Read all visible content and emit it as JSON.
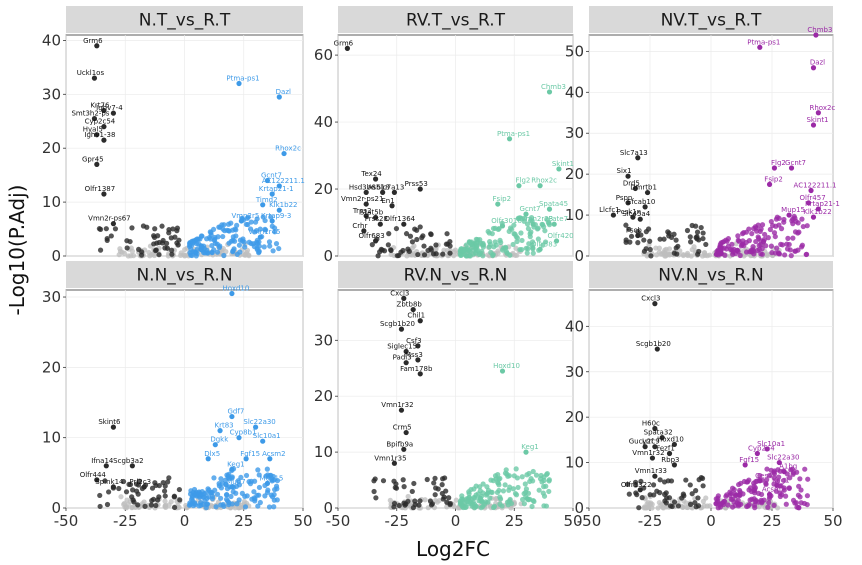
{
  "xlabel": "Log2FC",
  "ylabel": "-Log10(P.Adj)",
  "colors": {
    "down": "#2b2b2b",
    "ns": "#bdbdbd",
    "up_T": "#3d9ae8",
    "up_RV": "#6cc9a6",
    "up_NV": "#9b2aa6",
    "up_N": "#3d9ae8"
  },
  "chart_data": [
    {
      "type": "scatter",
      "title": "N.T_vs_R.T",
      "xlim": [
        -50,
        50
      ],
      "ylim": [
        0,
        41
      ],
      "xticks": [
        -50,
        -25,
        0,
        25,
        50
      ],
      "yticks": [
        0,
        10,
        20,
        30,
        40
      ],
      "up_color_key": "up_T",
      "labeled_down": [
        {
          "label": "Grm6",
          "x": -37,
          "y": 39
        },
        {
          "label": "Uckl1os",
          "x": -38,
          "y": 33
        },
        {
          "label": "Krt76",
          "x": -34,
          "y": 27
        },
        {
          "label": "Ighv7-4",
          "x": -30,
          "y": 26.5
        },
        {
          "label": "Smt3h2-ps",
          "x": -38,
          "y": 25.5
        },
        {
          "label": "Cyp2c54",
          "x": -34,
          "y": 24
        },
        {
          "label": "Hyal5",
          "x": -37,
          "y": 22.5
        },
        {
          "label": "Ighv1-38",
          "x": -34,
          "y": 21.5
        },
        {
          "label": "Gpr45",
          "x": -37,
          "y": 17
        },
        {
          "label": "Olfr1387",
          "x": -34,
          "y": 11.5
        },
        {
          "label": "Vmn2r-ps67",
          "x": -30,
          "y": 6
        }
      ],
      "labeled_up": [
        {
          "label": "Ptma-ps1",
          "x": 23,
          "y": 32
        },
        {
          "label": "Dazl",
          "x": 40,
          "y": 29.5
        },
        {
          "label": "Rhox2c",
          "x": 42,
          "y": 19
        },
        {
          "label": "Gcnt7",
          "x": 35,
          "y": 14
        },
        {
          "label": "AC122211.1",
          "x": 40,
          "y": 13
        },
        {
          "label": "Krtap21-1",
          "x": 37,
          "y": 11.5
        },
        {
          "label": "Timd2",
          "x": 33,
          "y": 9.5
        },
        {
          "label": "Klk1b22",
          "x": 40,
          "y": 8.5
        },
        {
          "label": "Vmn2r5",
          "x": 24,
          "y": 6.5
        },
        {
          "label": "Krtap9-3",
          "x": 37,
          "y": 6.5
        },
        {
          "label": "Vmn1r45",
          "x": 32,
          "y": 3.5
        }
      ]
    },
    {
      "type": "scatter",
      "title": "RV.T_vs_R.T",
      "xlim": [
        -50,
        50
      ],
      "ylim": [
        0,
        66
      ],
      "xticks": [
        -50,
        -25,
        0,
        25,
        50
      ],
      "yticks": [
        0,
        20,
        40,
        60
      ],
      "up_color_key": "up_RV",
      "labeled_down": [
        {
          "label": "Grm6",
          "x": -46,
          "y": 62
        },
        {
          "label": "Tex24",
          "x": -34,
          "y": 23
        },
        {
          "label": "Hsd3b6",
          "x": -38,
          "y": 19
        },
        {
          "label": "Asb18",
          "x": -31,
          "y": 19
        },
        {
          "label": "Slc7a13",
          "x": -26,
          "y": 19
        },
        {
          "label": "Prss53",
          "x": -15,
          "y": 20
        },
        {
          "label": "Vmn2r-ps21",
          "x": -38,
          "y": 15.5
        },
        {
          "label": "En1",
          "x": -27,
          "y": 15
        },
        {
          "label": "Trps2",
          "x": -38,
          "y": 12
        },
        {
          "label": "Stat5b",
          "x": -34,
          "y": 11.5
        },
        {
          "label": "Prss28",
          "x": -32,
          "y": 9.5
        },
        {
          "label": "Olfr1364",
          "x": -22,
          "y": 9.5
        },
        {
          "label": "Crhr",
          "x": -39,
          "y": 7.5
        },
        {
          "label": "Olfr683",
          "x": -34,
          "y": 4.5
        }
      ],
      "labeled_up": [
        {
          "label": "Chmb3",
          "x": 40,
          "y": 49
        },
        {
          "label": "Ptma-ps1",
          "x": 23,
          "y": 35
        },
        {
          "label": "Skint1",
          "x": 44,
          "y": 26
        },
        {
          "label": "Flg2",
          "x": 27,
          "y": 21
        },
        {
          "label": "Rhox2c",
          "x": 36,
          "y": 21
        },
        {
          "label": "Fsip2",
          "x": 18,
          "y": 15.5
        },
        {
          "label": "Spata45",
          "x": 40,
          "y": 14
        },
        {
          "label": "Gcnt7",
          "x": 30,
          "y": 12.5
        },
        {
          "label": "Olfr3016",
          "x": 20,
          "y": 9
        },
        {
          "label": "Vmn2r23",
          "x": 33,
          "y": 9.5
        },
        {
          "label": "Pate7",
          "x": 42,
          "y": 9.5
        },
        {
          "label": "Olfr420",
          "x": 43,
          "y": 4.5
        },
        {
          "label": "Olfr583",
          "x": 36,
          "y": 2
        }
      ]
    },
    {
      "type": "scatter",
      "title": "NV.T_vs_R.T",
      "xlim": [
        -50,
        50
      ],
      "ylim": [
        0,
        54
      ],
      "xticks": [
        -50,
        -25,
        0,
        25,
        50
      ],
      "yticks": [
        0,
        10,
        20,
        30,
        40,
        50
      ],
      "up_color_key": "up_NV",
      "labeled_down": [
        {
          "label": "Slc7a13",
          "x": -30,
          "y": 24
        },
        {
          "label": "Six1",
          "x": -34,
          "y": 19.5
        },
        {
          "label": "Drd5",
          "x": -31,
          "y": 16.5
        },
        {
          "label": "Dmrtb1",
          "x": -26,
          "y": 15.5
        },
        {
          "label": "Pspn",
          "x": -34,
          "y": 13
        },
        {
          "label": "Efcab10",
          "x": -27,
          "y": 12
        },
        {
          "label": "Llcfc1",
          "x": -40,
          "y": 10
        },
        {
          "label": "Pcsk1n",
          "x": -32,
          "y": 9.5
        },
        {
          "label": "Slc45a4",
          "x": -29,
          "y": 9
        },
        {
          "label": "Fscb",
          "x": -30,
          "y": 5
        }
      ],
      "labeled_up": [
        {
          "label": "Chmb3",
          "x": 43,
          "y": 54
        },
        {
          "label": "Ptma-ps1",
          "x": 20,
          "y": 51
        },
        {
          "label": "Dazl",
          "x": 42,
          "y": 46
        },
        {
          "label": "Rhox2c",
          "x": 44,
          "y": 35
        },
        {
          "label": "Skint1",
          "x": 42,
          "y": 32
        },
        {
          "label": "Gcnt7",
          "x": 33,
          "y": 21.5
        },
        {
          "label": "Flg2",
          "x": 26,
          "y": 21.5
        },
        {
          "label": "Fsip2",
          "x": 24,
          "y": 17.5
        },
        {
          "label": "AC122211.1",
          "x": 41,
          "y": 16
        },
        {
          "label": "Olfr457",
          "x": 40,
          "y": 13
        },
        {
          "label": "Krtap21-1",
          "x": 44,
          "y": 11.5
        },
        {
          "label": "Mup15",
          "x": 32,
          "y": 10
        },
        {
          "label": "Klk1b22",
          "x": 42,
          "y": 9.5
        }
      ]
    },
    {
      "type": "scatter",
      "title": "N.N_vs_R.N",
      "xlim": [
        -50,
        50
      ],
      "ylim": [
        0,
        31
      ],
      "xticks": [
        -50,
        -25,
        0,
        25,
        50
      ],
      "yticks": [
        0,
        10,
        20,
        30
      ],
      "up_color_key": "up_N",
      "labeled_down": [
        {
          "label": "Skint6",
          "x": -30,
          "y": 11.5
        },
        {
          "label": "Ifna14",
          "x": -33,
          "y": 6
        },
        {
          "label": "Scgb3a2",
          "x": -22,
          "y": 6
        },
        {
          "label": "Olfr444",
          "x": -37,
          "y": 4
        },
        {
          "label": "Spink14",
          "x": -30,
          "y": 3
        },
        {
          "label": "Prl2c3",
          "x": -17,
          "y": 3
        }
      ],
      "labeled_up": [
        {
          "label": "Hoxd10",
          "x": 20,
          "y": 30.5
        },
        {
          "label": "Gdf7",
          "x": 20,
          "y": 13
        },
        {
          "label": "Krt83",
          "x": 15,
          "y": 11
        },
        {
          "label": "Slc22a30",
          "x": 30,
          "y": 11.5
        },
        {
          "label": "Cyp8b1",
          "x": 23,
          "y": 10
        },
        {
          "label": "Slc10a1",
          "x": 33,
          "y": 9.5
        },
        {
          "label": "Dgkk",
          "x": 13,
          "y": 9
        },
        {
          "label": "Dlx5",
          "x": 10,
          "y": 7
        },
        {
          "label": "Fgf15",
          "x": 26,
          "y": 7
        },
        {
          "label": "Acsm2",
          "x": 36,
          "y": 7
        },
        {
          "label": "Keg1",
          "x": 20,
          "y": 5.5
        },
        {
          "label": "Mup7",
          "x": 20,
          "y": 3
        },
        {
          "label": "Mup15",
          "x": 35,
          "y": 3.5
        }
      ]
    },
    {
      "type": "scatter",
      "title": "RV.N_vs_R.N",
      "xlim": [
        -50,
        50
      ],
      "ylim": [
        0,
        39
      ],
      "xticks": [
        -50,
        -25,
        0,
        25,
        50
      ],
      "yticks": [
        0,
        10,
        20,
        30
      ],
      "up_color_key": "up_RV",
      "labeled_down": [
        {
          "label": "Cxcl3",
          "x": -22,
          "y": 37.5
        },
        {
          "label": "Zbtb8b",
          "x": -18,
          "y": 35.5
        },
        {
          "label": "Chil1",
          "x": -15,
          "y": 33.5
        },
        {
          "label": "Scgb1b20",
          "x": -23,
          "y": 32
        },
        {
          "label": "Csf3",
          "x": -16,
          "y": 29
        },
        {
          "label": "Siglec15",
          "x": -21,
          "y": 28
        },
        {
          "label": "Mss3",
          "x": -16,
          "y": 26.5
        },
        {
          "label": "Padi3",
          "x": -21,
          "y": 26
        },
        {
          "label": "Fam178b",
          "x": -15,
          "y": 24
        },
        {
          "label": "Vmn1r32",
          "x": -23,
          "y": 17.5
        },
        {
          "label": "Crm5",
          "x": -21,
          "y": 13.5
        },
        {
          "label": "Bpifb9a",
          "x": -22,
          "y": 10.5
        },
        {
          "label": "Vmn1r35",
          "x": -26,
          "y": 8
        }
      ],
      "labeled_up": [
        {
          "label": "Hoxd10",
          "x": 20,
          "y": 24.5
        },
        {
          "label": "Keg1",
          "x": 30,
          "y": 10
        }
      ]
    },
    {
      "type": "scatter",
      "title": "NV.N_vs_R.N",
      "xlim": [
        -50,
        50
      ],
      "ylim": [
        0,
        48
      ],
      "xticks": [
        -50,
        -25,
        0,
        25,
        50
      ],
      "yticks": [
        0,
        10,
        20,
        30,
        40
      ],
      "up_color_key": "up_NV",
      "labeled_down": [
        {
          "label": "Cxcl3",
          "x": -23,
          "y": 45
        },
        {
          "label": "Scgb1b20",
          "x": -22,
          "y": 35
        },
        {
          "label": "H60c",
          "x": -23,
          "y": 17.5
        },
        {
          "label": "Spata32",
          "x": -20,
          "y": 15.5
        },
        {
          "label": "Gucy2f",
          "x": -27,
          "y": 13.5
        },
        {
          "label": "Lrrc9",
          "x": -23,
          "y": 13.5
        },
        {
          "label": "Hoxd10",
          "x": -15,
          "y": 14
        },
        {
          "label": "Fezf1",
          "x": -17,
          "y": 12
        },
        {
          "label": "Vmn1r32",
          "x": -24,
          "y": 11
        },
        {
          "label": "Rbp3",
          "x": -15,
          "y": 9.5
        },
        {
          "label": "Vmn1r33",
          "x": -23,
          "y": 7
        },
        {
          "label": "Olfr1322",
          "x": -29,
          "y": 4
        }
      ],
      "labeled_up": [
        {
          "label": "Slc10a1",
          "x": 23,
          "y": 13
        },
        {
          "label": "Cyp2a4",
          "x": 19,
          "y": 12
        },
        {
          "label": "Slc22a30",
          "x": 28,
          "y": 10
        },
        {
          "label": "Fgf15",
          "x": 14,
          "y": 9.5
        },
        {
          "label": "A1bg",
          "x": 30,
          "y": 8
        },
        {
          "label": "Ces4",
          "x": 20,
          "y": 6
        },
        {
          "label": "Keg1",
          "x": 27,
          "y": 5
        },
        {
          "label": "Acsm2",
          "x": 24,
          "y": 3
        }
      ]
    }
  ]
}
